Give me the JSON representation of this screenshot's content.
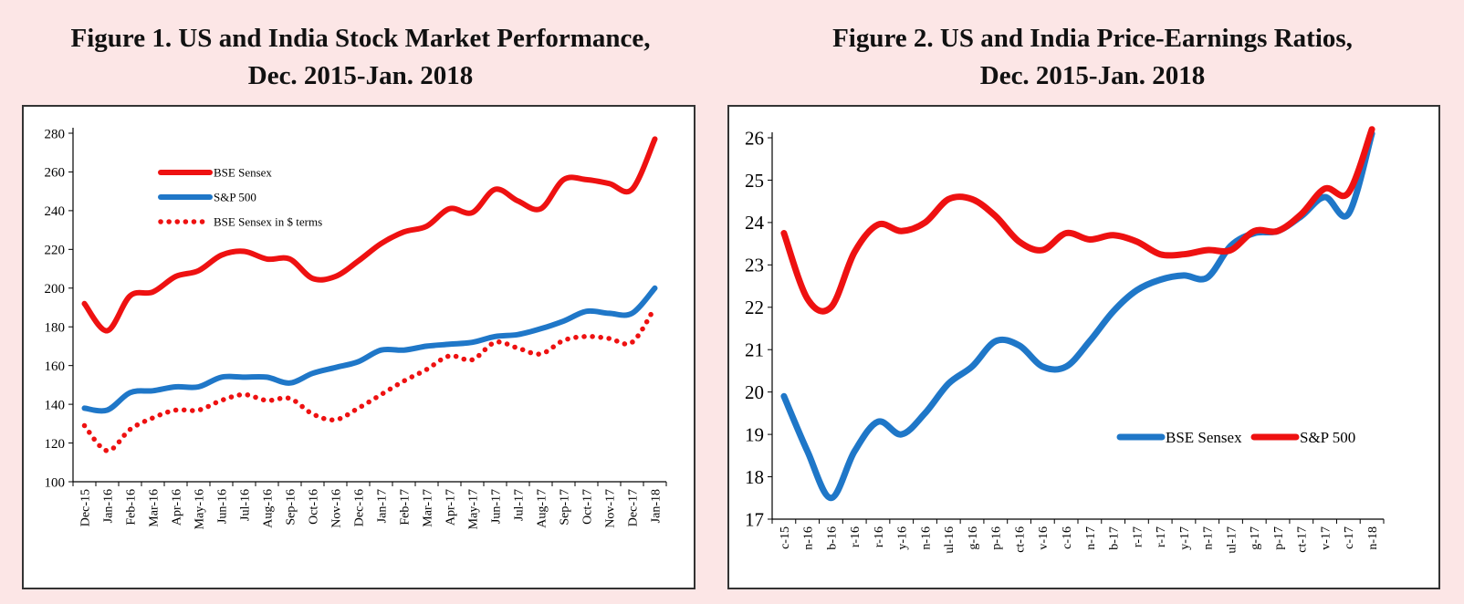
{
  "figure1": {
    "title_line1": "Figure 1. US and India Stock Market Performance,",
    "title_line2": "Dec. 2015-Jan. 2018"
  },
  "figure2": {
    "title_line1": "Figure 2. US and India Price-Earnings Ratios,",
    "title_line2": "Dec. 2015-Jan. 2018"
  },
  "chart_data": [
    {
      "type": "line",
      "title": "Figure 1. US and India Stock Market Performance, Dec. 2015-Jan. 2018",
      "categories": [
        "Dec-15",
        "Jan-16",
        "Feb-16",
        "Mar-16",
        "Apr-16",
        "May-16",
        "Jun-16",
        "Jul-16",
        "Aug-16",
        "Sep-16",
        "Oct-16",
        "Nov-16",
        "Dec-16",
        "Jan-17",
        "Feb-17",
        "Mar-17",
        "Apr-17",
        "May-17",
        "Jun-17",
        "Jul-17",
        "Aug-17",
        "Sep-17",
        "Oct-17",
        "Nov-17",
        "Dec-17",
        "Jan-18"
      ],
      "ylim": [
        100,
        280
      ],
      "yticks": [
        100,
        120,
        140,
        160,
        180,
        200,
        220,
        240,
        260,
        280
      ],
      "grid": false,
      "legend_position": "top-left",
      "series": [
        {
          "name": "BSE Sensex",
          "color": "#ee1111",
          "style": "solid",
          "values": [
            192,
            178,
            196,
            198,
            206,
            209,
            217,
            219,
            215,
            215,
            205,
            206,
            214,
            223,
            229,
            232,
            241,
            239,
            251,
            245,
            241,
            256,
            256,
            254,
            251,
            277
          ]
        },
        {
          "name": "S&P 500",
          "color": "#1f77c8",
          "style": "solid",
          "values": [
            138,
            137,
            146,
            147,
            149,
            149,
            154,
            154,
            154,
            151,
            156,
            159,
            162,
            168,
            168,
            170,
            171,
            172,
            175,
            176,
            179,
            183,
            188,
            187,
            187,
            200
          ]
        },
        {
          "name": "BSE Sensex in $ terms",
          "color": "#ee1111",
          "style": "dotted",
          "values": [
            129,
            116,
            127,
            133,
            137,
            137,
            142,
            145,
            142,
            143,
            135,
            132,
            138,
            145,
            152,
            158,
            165,
            163,
            172,
            169,
            166,
            173,
            175,
            174,
            172,
            190
          ]
        }
      ]
    },
    {
      "type": "line",
      "title": "Figure 2. US and India Price-Earnings Ratios, Dec. 2015-Jan. 2018",
      "categories": [
        "c-15",
        "n-16",
        "b-16",
        "r-16",
        "r-16",
        "y-16",
        "n-16",
        "ul-16",
        "g-16",
        "p-16",
        "ct-16",
        "v-16",
        "c-16",
        "n-17",
        "b-17",
        "r-17",
        "r-17",
        "y-17",
        "n-17",
        "ul-17",
        "g-17",
        "p-17",
        "ct-17",
        "v-17",
        "c-17",
        "n-18"
      ],
      "ylim": [
        17,
        26
      ],
      "yticks": [
        17,
        18,
        19,
        20,
        21,
        22,
        23,
        24,
        25,
        26
      ],
      "grid": false,
      "legend_position": "bottom-right",
      "series": [
        {
          "name": "BSE Sensex",
          "color": "#1f77c8",
          "style": "solid",
          "values": [
            19.9,
            18.6,
            17.5,
            18.6,
            19.3,
            19.0,
            19.5,
            20.2,
            20.6,
            21.2,
            21.1,
            20.6,
            20.6,
            21.2,
            21.9,
            22.4,
            22.65,
            22.75,
            22.7,
            23.45,
            23.75,
            23.8,
            24.15,
            24.6,
            24.2,
            26.1
          ]
        },
        {
          "name": "S&P 500",
          "color": "#ee1111",
          "style": "solid",
          "values": [
            23.75,
            22.2,
            22.0,
            23.3,
            23.95,
            23.8,
            24.0,
            24.55,
            24.55,
            24.15,
            23.55,
            23.35,
            23.75,
            23.6,
            23.7,
            23.55,
            23.25,
            23.25,
            23.35,
            23.35,
            23.8,
            23.8,
            24.2,
            24.8,
            24.7,
            26.2
          ]
        }
      ]
    }
  ]
}
